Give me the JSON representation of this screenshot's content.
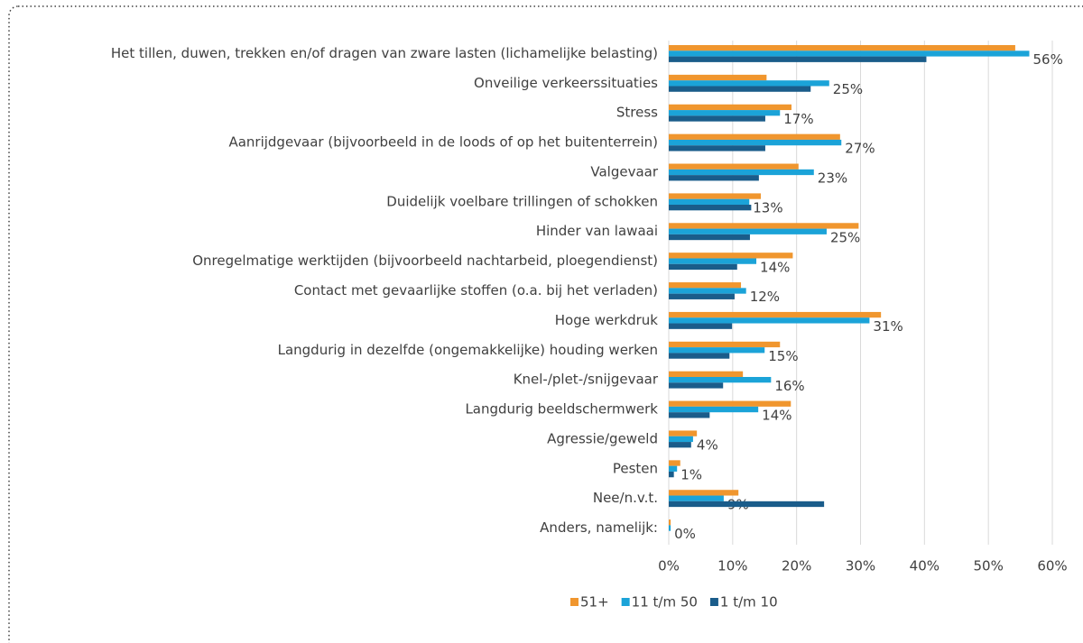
{
  "chart_data": {
    "type": "bar",
    "orientation": "horizontal",
    "categories": [
      "Het tillen, duwen, trekken en/of dragen van zware lasten (lichamelijke belasting)",
      "Onveilige verkeerssituaties",
      "Stress",
      "Aanrijdgevaar (bijvoorbeeld in de loods of op het buitenterrein)",
      "Valgevaar",
      "Duidelijk voelbare trillingen of schokken",
      "Hinder van lawaai",
      "Onregelmatige werktijden (bijvoorbeeld nachtarbeid, ploegendienst)",
      "Contact met gevaarlijke stoffen (o.a. bij het verladen)",
      "Hoge werkdruk",
      "Langdurig in dezelfde (ongemakkelijke) houding werken",
      "Knel-/plet-/snijgevaar",
      "Langdurig beeldschermwerk",
      "Agressie/geweld",
      "Pesten",
      "Nee/n.v.t.",
      "Anders, namelijk:"
    ],
    "series": [
      {
        "name": "51+",
        "color": "#f0962e",
        "values": [
          54.2,
          15.3,
          19.2,
          26.8,
          20.3,
          14.4,
          29.7,
          19.4,
          11.3,
          33.2,
          17.4,
          11.6,
          19.1,
          4.4,
          1.8,
          10.9,
          0.3
        ]
      },
      {
        "name": "11 t/m 50",
        "color": "#1ba3d8",
        "values": [
          56.4,
          25.1,
          17.4,
          27,
          22.7,
          12.6,
          24.7,
          13.7,
          12.1,
          31.4,
          15,
          16,
          14,
          3.8,
          1.3,
          8.6,
          0.3
        ],
        "value_labels": [
          "56%",
          "25%",
          "17%",
          "27%",
          "23%",
          "13%",
          "25%",
          "14%",
          "12%",
          "31%",
          "15%",
          "16%",
          "14%",
          "4%",
          "1%",
          "9%",
          "0%"
        ]
      },
      {
        "name": "1 t/m 10",
        "color": "#1a5c8a",
        "values": [
          40.3,
          22.2,
          15.1,
          15.1,
          14.1,
          12.9,
          12.7,
          10.7,
          10.3,
          9.9,
          9.5,
          8.5,
          6.4,
          3.5,
          0.8,
          24.3,
          0
        ]
      }
    ],
    "xlim": [
      0,
      60
    ],
    "xticks": [
      {
        "value": 0,
        "label": "0%"
      },
      {
        "value": 10,
        "label": "10%"
      },
      {
        "value": 20,
        "label": "20%"
      },
      {
        "value": 30,
        "label": "30%"
      },
      {
        "value": 40,
        "label": "40%"
      },
      {
        "value": 50,
        "label": "50%"
      },
      {
        "value": 60,
        "label": "60%"
      }
    ],
    "grid": true,
    "legend": "bottom"
  }
}
